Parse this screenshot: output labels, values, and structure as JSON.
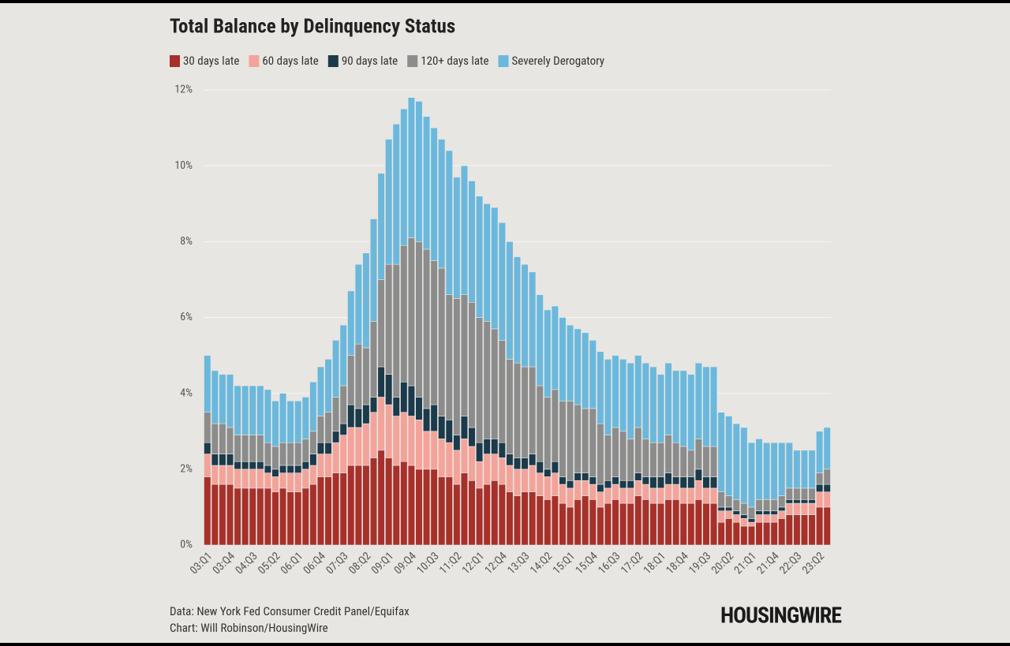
{
  "chart_data": {
    "type": "stacked-bar",
    "title": "Total Balance by Delinquency Status",
    "categories": [
      "03:Q1",
      null,
      null,
      "03:Q4",
      null,
      null,
      "04:Q3",
      null,
      null,
      "05:Q2",
      null,
      null,
      "06:Q1",
      null,
      null,
      "06:Q4",
      null,
      null,
      "07:Q3",
      null,
      null,
      "08:Q2",
      null,
      null,
      "09:Q1",
      null,
      null,
      "09:Q4",
      null,
      null,
      "10:Q3",
      null,
      null,
      "11:Q2",
      null,
      null,
      "12:Q1",
      null,
      null,
      "12:Q4",
      null,
      null,
      "13:Q3",
      null,
      null,
      "14:Q2",
      null,
      null,
      "15:Q1",
      null,
      null,
      "15:Q4",
      null,
      null,
      "16:Q3",
      null,
      null,
      "17:Q2",
      null,
      null,
      "18:Q1",
      null,
      null,
      "18:Q4",
      null,
      null,
      "19:Q3",
      null,
      null,
      "20:Q2",
      null,
      null,
      "21:Q1",
      null,
      null,
      "21:Q4",
      null,
      null,
      "22:Q3",
      null,
      null,
      "23:Q2",
      null
    ],
    "series": [
      {
        "name": "30 days late",
        "color": "#a8302a",
        "values": [
          1.8,
          1.6,
          1.6,
          1.6,
          1.5,
          1.5,
          1.5,
          1.5,
          1.5,
          1.4,
          1.5,
          1.4,
          1.4,
          1.5,
          1.6,
          1.8,
          1.8,
          1.9,
          1.9,
          2.1,
          2.1,
          2.1,
          2.3,
          2.5,
          2.3,
          2.1,
          2.2,
          2.1,
          2.0,
          2.0,
          2.0,
          1.8,
          1.8,
          1.6,
          1.9,
          1.7,
          1.5,
          1.6,
          1.7,
          1.6,
          1.4,
          1.3,
          1.4,
          1.4,
          1.3,
          1.2,
          1.3,
          1.1,
          1.0,
          1.2,
          1.3,
          1.2,
          1.0,
          1.1,
          1.2,
          1.1,
          1.1,
          1.3,
          1.2,
          1.1,
          1.1,
          1.2,
          1.2,
          1.1,
          1.1,
          1.2,
          1.1,
          1.1,
          0.6,
          0.7,
          0.6,
          0.5,
          0.5,
          0.6,
          0.6,
          0.6,
          0.7,
          0.8,
          0.8,
          0.8,
          0.8,
          1.0,
          1.0
        ]
      },
      {
        "name": "60 days late",
        "color": "#f4a39a",
        "values": [
          0.6,
          0.5,
          0.5,
          0.5,
          0.5,
          0.5,
          0.5,
          0.5,
          0.4,
          0.4,
          0.4,
          0.5,
          0.5,
          0.5,
          0.5,
          0.6,
          0.6,
          0.8,
          1.0,
          1.0,
          1.0,
          1.1,
          1.2,
          1.4,
          1.4,
          1.3,
          1.3,
          1.3,
          1.3,
          1.0,
          1.0,
          1.0,
          0.9,
          0.9,
          0.9,
          0.9,
          0.7,
          0.8,
          0.7,
          0.7,
          0.7,
          0.7,
          0.6,
          0.7,
          0.6,
          0.6,
          0.6,
          0.5,
          0.5,
          0.5,
          0.4,
          0.4,
          0.4,
          0.4,
          0.4,
          0.4,
          0.4,
          0.4,
          0.4,
          0.4,
          0.4,
          0.4,
          0.4,
          0.4,
          0.4,
          0.5,
          0.4,
          0.4,
          0.3,
          0.2,
          0.2,
          0.2,
          0.1,
          0.2,
          0.2,
          0.2,
          0.2,
          0.3,
          0.3,
          0.3,
          0.3,
          0.4,
          0.4
        ]
      },
      {
        "name": "90 days late",
        "color": "#1b3a4b",
        "values": [
          0.3,
          0.3,
          0.3,
          0.3,
          0.2,
          0.2,
          0.2,
          0.2,
          0.2,
          0.2,
          0.2,
          0.2,
          0.2,
          0.2,
          0.3,
          0.3,
          0.3,
          0.3,
          0.3,
          0.6,
          0.5,
          0.5,
          0.4,
          0.8,
          0.8,
          0.5,
          0.8,
          0.8,
          0.6,
          0.6,
          0.7,
          0.6,
          0.6,
          0.4,
          0.6,
          0.5,
          0.5,
          0.4,
          0.4,
          0.4,
          0.3,
          0.3,
          0.3,
          0.3,
          0.3,
          0.2,
          0.3,
          0.2,
          0.2,
          0.2,
          0.2,
          0.2,
          0.2,
          0.2,
          0.2,
          0.2,
          0.2,
          0.2,
          0.2,
          0.3,
          0.3,
          0.3,
          0.2,
          0.3,
          0.3,
          0.3,
          0.3,
          0.3,
          0.1,
          0.1,
          0.1,
          0.1,
          0.1,
          0.1,
          0.1,
          0.1,
          0.1,
          0.1,
          0.1,
          0.1,
          0.1,
          0.2,
          0.2
        ]
      },
      {
        "name": "120+ days late",
        "color": "#8c8c8c",
        "values": [
          0.8,
          0.8,
          0.8,
          0.7,
          0.7,
          0.7,
          0.7,
          0.7,
          0.6,
          0.6,
          0.6,
          0.6,
          0.6,
          0.6,
          0.6,
          0.7,
          0.8,
          0.9,
          1.0,
          1.3,
          1.7,
          1.5,
          2.0,
          2.3,
          2.9,
          3.5,
          3.6,
          3.9,
          4.1,
          4.2,
          3.8,
          3.9,
          3.3,
          3.6,
          3.2,
          3.3,
          3.3,
          3.1,
          2.9,
          2.7,
          2.5,
          2.5,
          2.4,
          2.3,
          2.0,
          1.9,
          1.9,
          2.0,
          2.1,
          1.8,
          1.7,
          1.8,
          1.6,
          1.2,
          1.3,
          1.3,
          1.1,
          1.2,
          1.0,
          0.9,
          0.9,
          1.0,
          0.9,
          0.8,
          0.7,
          0.8,
          0.8,
          0.8,
          0.4,
          0.3,
          0.3,
          0.3,
          0.3,
          0.3,
          0.3,
          0.3,
          0.3,
          0.3,
          0.3,
          0.3,
          0.3,
          0.3,
          0.4
        ]
      },
      {
        "name": "Severely Derogatory",
        "color": "#6bb8dc",
        "values": [
          1.5,
          1.4,
          1.3,
          1.4,
          1.3,
          1.3,
          1.3,
          1.3,
          1.4,
          1.2,
          1.3,
          1.1,
          1.1,
          1.1,
          1.3,
          1.3,
          1.4,
          1.5,
          1.6,
          1.7,
          2.1,
          2.5,
          2.7,
          2.8,
          3.3,
          3.7,
          3.6,
          3.7,
          3.7,
          3.5,
          3.5,
          3.4,
          3.8,
          3.2,
          3.4,
          3.2,
          3.2,
          3.1,
          3.2,
          3.1,
          3.1,
          2.8,
          2.7,
          2.5,
          2.4,
          2.3,
          2.2,
          2.2,
          2.0,
          2.0,
          2.0,
          1.8,
          1.9,
          2.0,
          1.9,
          1.9,
          2.0,
          1.9,
          2.0,
          2.0,
          1.8,
          1.9,
          1.9,
          2.0,
          2.0,
          2.0,
          2.1,
          2.1,
          2.1,
          2.1,
          2.0,
          2.0,
          1.7,
          1.6,
          1.5,
          1.5,
          1.4,
          1.2,
          1.0,
          1.0,
          1.0,
          1.1,
          1.1
        ]
      }
    ],
    "ylim": [
      0,
      12
    ],
    "yticks": [
      {
        "value": 0,
        "label": "0%"
      },
      {
        "value": 2,
        "label": "2%"
      },
      {
        "value": 4,
        "label": "4%"
      },
      {
        "value": 6,
        "label": "6%"
      },
      {
        "value": 8,
        "label": "8%"
      },
      {
        "value": 10,
        "label": "10%"
      },
      {
        "value": 12,
        "label": "12%"
      }
    ],
    "grid": true,
    "source": "Data: New York Fed Consumer Credit Panel/Equifax",
    "credit": "Chart: Will Robinson/HousingWire",
    "logo": "HOUSINGWIRE"
  }
}
